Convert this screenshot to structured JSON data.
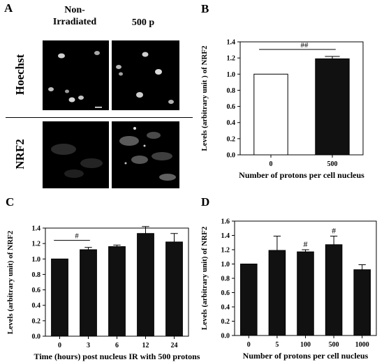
{
  "panel_a": {
    "letter": "A",
    "col_headers": [
      "Non-\nIrradiated",
      "500 p"
    ],
    "row_headers": [
      "Hoechst",
      "NRF2"
    ]
  },
  "chart_data": [
    {
      "letter": "B",
      "type": "bar",
      "categories": [
        "0",
        "500"
      ],
      "values": [
        1.0,
        1.19
      ],
      "errors": [
        0,
        0.03
      ],
      "bar_colors": [
        "#ffffff",
        "#111111"
      ],
      "ylabel": "Levels (arbitrary unit ) of NRF2",
      "xlabel": "Number of protons per cell nucleus",
      "ylim": [
        0,
        1.4
      ],
      "yticks": [
        "0.0",
        "0.2",
        "0.4",
        "0.6",
        "0.8",
        "1.0",
        "1.2",
        "1.4"
      ],
      "annotations": [
        {
          "text": "##",
          "from": 0,
          "to": 1
        }
      ],
      "annotation_stars": []
    },
    {
      "letter": "C",
      "type": "bar",
      "categories": [
        "0",
        "3",
        "6",
        "12",
        "24"
      ],
      "values": [
        1.0,
        1.12,
        1.16,
        1.33,
        1.22
      ],
      "errors": [
        0,
        0.03,
        0.02,
        0.09,
        0.11
      ],
      "bar_colors": [
        "#111111",
        "#111111",
        "#111111",
        "#111111",
        "#111111"
      ],
      "ylabel": "Levels (arbitrary unit) of NRF2",
      "xlabel": "Time (hours) post nucleus IR with 500 protons",
      "ylim": [
        0,
        1.4
      ],
      "yticks": [
        "0.0",
        "0.2",
        "0.4",
        "0.6",
        "0.8",
        "1.0",
        "1.2",
        "1.4"
      ],
      "annotations": [
        {
          "text": "#",
          "from": 0,
          "to": 1
        }
      ],
      "annotation_stars": []
    },
    {
      "letter": "D",
      "type": "bar",
      "categories": [
        "0",
        "5",
        "100",
        "500",
        "1000"
      ],
      "values": [
        1.0,
        1.19,
        1.17,
        1.27,
        0.92
      ],
      "errors": [
        0,
        0.2,
        0.03,
        0.12,
        0.07
      ],
      "bar_colors": [
        "#111111",
        "#111111",
        "#111111",
        "#111111",
        "#111111"
      ],
      "ylabel": "Levels (arbitrary unit) of NRF2",
      "xlabel": "Number of protons per cell nucleus",
      "ylim": [
        0,
        1.6
      ],
      "yticks": [
        "0.0",
        "0.2",
        "0.4",
        "0.6",
        "0.8",
        "1.0",
        "1.2",
        "1.4",
        "1.6"
      ],
      "annotations": [],
      "annotation_stars": [
        {
          "text": "#",
          "index": 2
        },
        {
          "text": "#",
          "index": 3
        }
      ]
    }
  ]
}
